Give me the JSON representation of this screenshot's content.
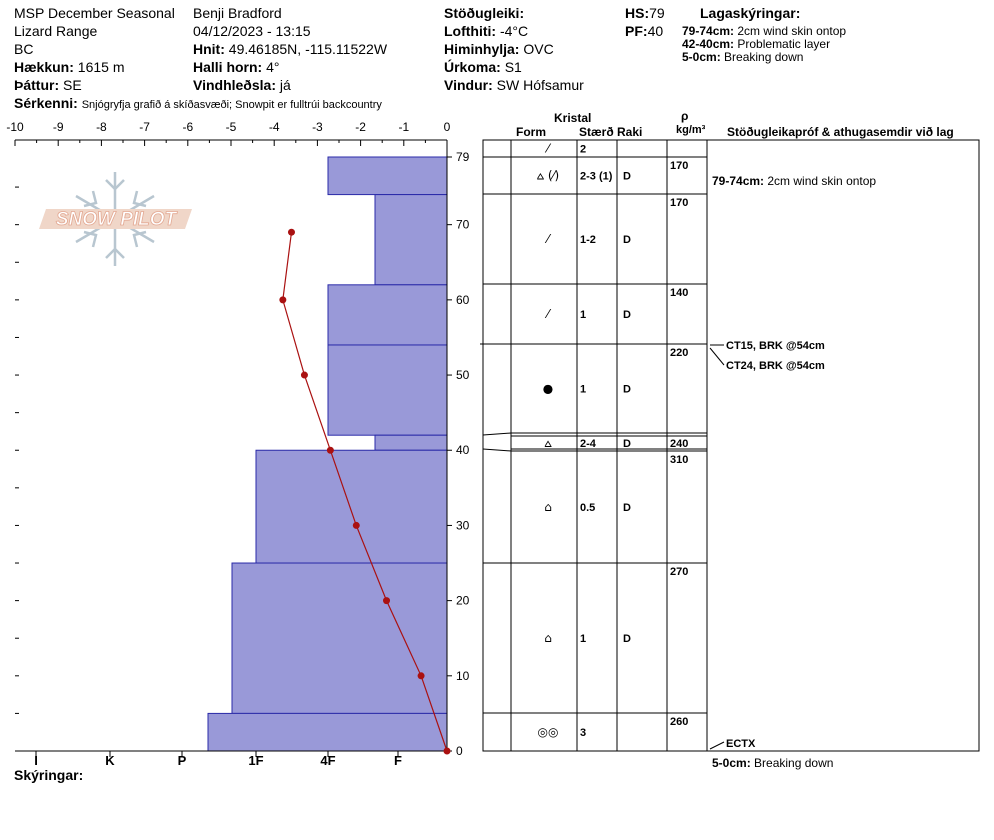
{
  "header": {
    "col1": [
      "MSP December Seasonal",
      "Lizard Range",
      "BC"
    ],
    "elevation_label": "Hækkun:",
    "elevation_value": "1615 m",
    "aspect_label": "Þáttur:",
    "aspect_value": "SE",
    "observer": "Benji Bradford",
    "datetime": "04/12/2023 - 13:15",
    "coords_label": "Hnit:",
    "coords_value": "49.46185N, -115.11522W",
    "slope_label": "Halli horn:",
    "slope_value": "4°",
    "wind_load_label": "Vindhleðsla:",
    "wind_load_value": "já",
    "stability_label": "Stöðugleiki:",
    "stability_value": "",
    "air_temp_label": "Lofthiti:",
    "air_temp_value": "-4°C",
    "sky_label": "Himinhylja:",
    "sky_value": "OVC",
    "precip_label": "Úrkoma:",
    "precip_value": "S1",
    "wind_label": "Vindur:",
    "wind_value": "SW Hófsamur",
    "hs_label": "HS:",
    "hs_value": "79",
    "pf_label": "PF:",
    "pf_value": "40",
    "layer_notes_title": "Lagaskýringar:",
    "layer_notes": [
      {
        "range": "79-74cm:",
        "text": "2cm wind skin ontop"
      },
      {
        "range": "42-40cm:",
        "text": "Problematic layer"
      },
      {
        "range": "5-0cm:",
        "text": "Breaking down"
      }
    ],
    "specifics_label": "Sérkenni:",
    "specifics_value": "Snjógryfja grafið á skíðasvæði; Snowpit er fulltrúi backcountry"
  },
  "logo_text": "SNOW PILOT",
  "footer": {
    "notes_label": "Skýringar:"
  },
  "table_headers": {
    "crystal": "Kristal",
    "form": "Form",
    "size": "Stærð",
    "moisture": "Raki",
    "rho": "ρ",
    "density_unit": "kg/m³",
    "stability_header": "Stöðugleikapróf & athugasemdir við lag"
  },
  "colors": {
    "hardness_fill": "#9999d8",
    "hardness_stroke": "#2a2aa8",
    "temp_line": "#aa1111"
  },
  "chart_data": {
    "type": "snow_profile",
    "temp_axis": {
      "ticks": [
        "-10",
        "-9",
        "-8",
        "-7",
        "-6",
        "-5",
        "-4",
        "-3",
        "-2",
        "-1",
        "0"
      ],
      "range": [
        -10,
        0
      ]
    },
    "depth_axis": {
      "ticks": [
        "79",
        "70",
        "60",
        "50",
        "40",
        "30",
        "20",
        "10",
        "0"
      ],
      "range": [
        0,
        79
      ]
    },
    "hardness_axis": {
      "ticks": [
        "I",
        "K",
        "P",
        "1F",
        "4F",
        "F"
      ]
    },
    "hardness_layers": [
      {
        "top": 79,
        "bottom": 74,
        "hand_hardness": "4F"
      },
      {
        "top": 74,
        "bottom": 62,
        "hand_hardness": "F+"
      },
      {
        "top": 62,
        "bottom": 54,
        "hand_hardness": "4F"
      },
      {
        "top": 54,
        "bottom": 42,
        "hand_hardness": "4F"
      },
      {
        "top": 42,
        "bottom": 40,
        "hand_hardness": "F+"
      },
      {
        "top": 40,
        "bottom": 25,
        "hand_hardness": "1F"
      },
      {
        "top": 25,
        "bottom": 5,
        "hand_hardness": "1F+"
      },
      {
        "top": 5,
        "bottom": 0,
        "hand_hardness": "P-"
      }
    ],
    "temperature_profile": [
      {
        "depth": 69,
        "temp": -3.6
      },
      {
        "depth": 60,
        "temp": -3.8
      },
      {
        "depth": 50,
        "temp": -3.3
      },
      {
        "depth": 40,
        "temp": -2.7
      },
      {
        "depth": 30,
        "temp": -2.1
      },
      {
        "depth": 20,
        "temp": -1.4
      },
      {
        "depth": 10,
        "temp": -0.6
      },
      {
        "depth": 0,
        "temp": 0
      }
    ],
    "layers": [
      {
        "top": 79,
        "bottom": 78,
        "form": "⁄",
        "size": "2",
        "moisture": "",
        "density": ""
      },
      {
        "top": 78,
        "bottom": 74,
        "form": "⩟ (⁄)",
        "size": "2-3 (1)",
        "moisture": "D",
        "density": "170"
      },
      {
        "top": 74,
        "bottom": 62,
        "form": "⁄",
        "size": "1-2",
        "moisture": "D",
        "density": "170"
      },
      {
        "top": 62,
        "bottom": 54,
        "form": "⁄",
        "size": "1",
        "moisture": "D",
        "density": "140"
      },
      {
        "top": 54,
        "bottom": 42,
        "form": "●",
        "size": "1",
        "moisture": "D",
        "density": "220"
      },
      {
        "top": 42,
        "bottom": 40,
        "form": "⩟",
        "size": "2-4",
        "moisture": "D",
        "density": "240"
      },
      {
        "top": 40,
        "bottom": 25,
        "form": "⌂",
        "size": "0.5",
        "moisture": "D",
        "density": "310"
      },
      {
        "top": 25,
        "bottom": 5,
        "form": "⌂",
        "size": "1",
        "moisture": "D",
        "density": "270"
      },
      {
        "top": 5,
        "bottom": 0,
        "form": "◎◎",
        "size": "3",
        "moisture": "",
        "density": "260"
      }
    ],
    "stability_tests": [
      {
        "label": "CT15, BRK @54cm",
        "depth": 54
      },
      {
        "label": "CT24, BRK @54cm",
        "depth": 54
      },
      {
        "label": "ECTX",
        "depth": 0
      }
    ],
    "layer_comments": [
      {
        "range": "79-74cm:",
        "text": "2cm wind skin ontop",
        "depth": 79
      },
      {
        "range": "5-0cm:",
        "text": "Breaking down",
        "depth": 0
      }
    ]
  }
}
